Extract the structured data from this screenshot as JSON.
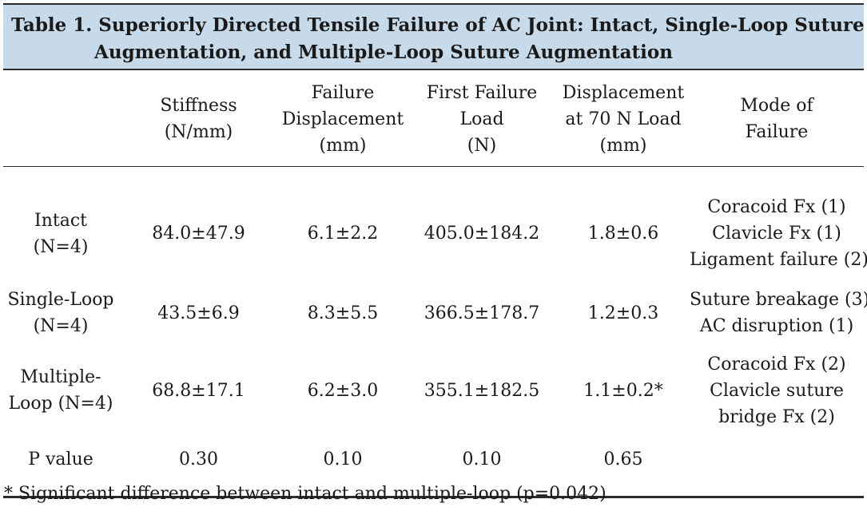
{
  "table": {
    "title_line1": "Table 1. Superiorly Directed Tensile Failure of AC Joint: Intact, Single-Loop Suture",
    "title_line2": "Augmentation, and Multiple-Loop Suture Augmentation",
    "headers": [
      [
        ""
      ],
      [
        "Stiffness",
        "(N/mm)"
      ],
      [
        "Failure",
        "Displacement",
        "(mm)"
      ],
      [
        "First Failure",
        "Load",
        "(N)"
      ],
      [
        "Displacement",
        "at 70 N Load",
        "(mm)"
      ],
      [
        "Mode of",
        "Failure"
      ]
    ],
    "rows": [
      {
        "label": [
          "Intact",
          "(N=4)"
        ],
        "stiffness": "84.0±47.9",
        "failure_displacement": "6.1±2.2",
        "first_failure_load": "405.0±184.2",
        "displacement_70n": "1.8±0.6",
        "mode": [
          "Coracoid Fx (1)",
          "Clavicle Fx (1)",
          "Ligament failure (2)"
        ]
      },
      {
        "label": [
          "Single-Loop",
          "(N=4)"
        ],
        "stiffness": "43.5±6.9",
        "failure_displacement": "8.3±5.5",
        "first_failure_load": "366.5±178.7",
        "displacement_70n": "1.2±0.3",
        "mode": [
          "Suture breakage (3)",
          "AC disruption (1)"
        ]
      },
      {
        "label": [
          "Multiple-",
          "Loop (N=4)"
        ],
        "stiffness": "68.8±17.1",
        "failure_displacement": "6.2±3.0",
        "first_failure_load": "355.1±182.5",
        "displacement_70n": "1.1±0.2*",
        "mode": [
          "Coracoid Fx (2)",
          "Clavicle suture",
          "bridge Fx (2)"
        ]
      },
      {
        "label": [
          "P value"
        ],
        "stiffness": "0.30",
        "failure_displacement": "0.10",
        "first_failure_load": "0.10",
        "displacement_70n": "0.65",
        "mode": [
          ""
        ]
      }
    ],
    "footnote": "* Significant difference between intact and multiple-loop (p=0.042)",
    "title_bg_color": "#c6dae9"
  }
}
